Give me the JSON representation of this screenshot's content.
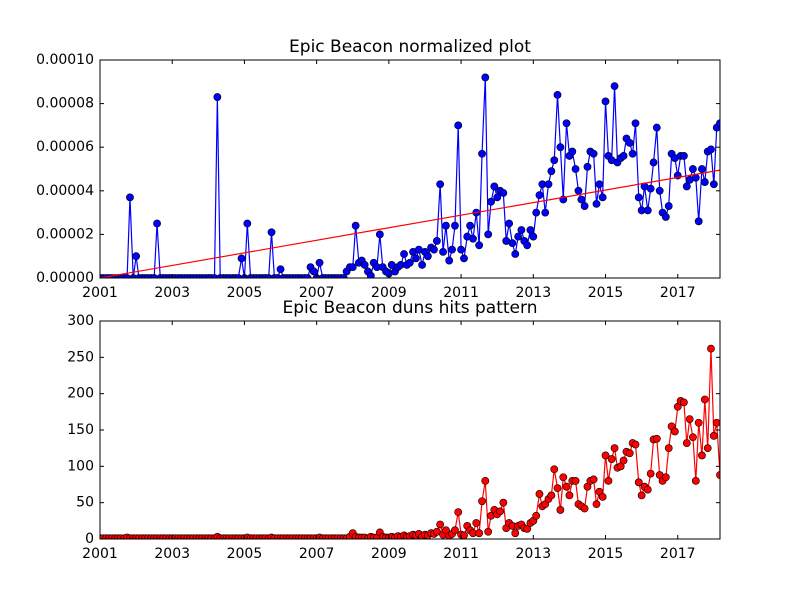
{
  "chart_data": [
    {
      "type": "line",
      "title": "Epic Beacon normalized plot",
      "xlim": [
        2001,
        2018.17
      ],
      "xticks": [
        2001,
        2003,
        2005,
        2007,
        2009,
        2011,
        2013,
        2015,
        2017
      ],
      "ylim": [
        0,
        0.0001
      ],
      "yticks": [
        {
          "value": 0,
          "label": "0.00000"
        },
        {
          "value": 2e-05,
          "label": "0.00002"
        },
        {
          "value": 4e-05,
          "label": "0.00004"
        },
        {
          "value": 6e-05,
          "label": "0.00006"
        },
        {
          "value": 8e-05,
          "label": "0.00008"
        },
        {
          "value": 0.0001,
          "label": "0.00010"
        }
      ],
      "x": [
        2001,
        2001.08,
        2001.17,
        2001.25,
        2001.33,
        2001.42,
        2001.5,
        2001.58,
        2001.67,
        2001.75,
        2001.83,
        2001.92,
        2002,
        2002.08,
        2002.17,
        2002.25,
        2002.33,
        2002.42,
        2002.5,
        2002.58,
        2002.67,
        2002.75,
        2002.83,
        2002.92,
        2003,
        2003.08,
        2003.17,
        2003.25,
        2003.33,
        2003.42,
        2003.5,
        2003.58,
        2003.67,
        2003.75,
        2003.83,
        2003.92,
        2004,
        2004.08,
        2004.17,
        2004.25,
        2004.33,
        2004.42,
        2004.5,
        2004.58,
        2004.67,
        2004.75,
        2004.83,
        2004.92,
        2005,
        2005.08,
        2005.17,
        2005.25,
        2005.33,
        2005.42,
        2005.5,
        2005.58,
        2005.67,
        2005.75,
        2005.83,
        2005.92,
        2006,
        2006.08,
        2006.17,
        2006.25,
        2006.33,
        2006.42,
        2006.5,
        2006.58,
        2006.67,
        2006.75,
        2006.83,
        2006.92,
        2007,
        2007.08,
        2007.17,
        2007.25,
        2007.33,
        2007.42,
        2007.5,
        2007.58,
        2007.67,
        2007.75,
        2007.83,
        2007.92,
        2008,
        2008.08,
        2008.17,
        2008.25,
        2008.33,
        2008.42,
        2008.5,
        2008.58,
        2008.67,
        2008.75,
        2008.83,
        2008.92,
        2009,
        2009.08,
        2009.17,
        2009.25,
        2009.33,
        2009.42,
        2009.5,
        2009.58,
        2009.67,
        2009.75,
        2009.83,
        2009.92,
        2010,
        2010.08,
        2010.17,
        2010.25,
        2010.33,
        2010.42,
        2010.5,
        2010.58,
        2010.67,
        2010.75,
        2010.83,
        2010.92,
        2011,
        2011.08,
        2011.17,
        2011.25,
        2011.33,
        2011.42,
        2011.5,
        2011.58,
        2011.67,
        2011.75,
        2011.83,
        2011.92,
        2012,
        2012.08,
        2012.17,
        2012.25,
        2012.33,
        2012.42,
        2012.5,
        2012.58,
        2012.67,
        2012.75,
        2012.83,
        2012.92,
        2013,
        2013.08,
        2013.17,
        2013.25,
        2013.33,
        2013.42,
        2013.5,
        2013.58,
        2013.67,
        2013.75,
        2013.83,
        2013.92,
        2014,
        2014.08,
        2014.17,
        2014.25,
        2014.33,
        2014.42,
        2014.5,
        2014.58,
        2014.67,
        2014.75,
        2014.83,
        2014.92,
        2015,
        2015.08,
        2015.17,
        2015.25,
        2015.33,
        2015.42,
        2015.5,
        2015.58,
        2015.67,
        2015.75,
        2015.83,
        2015.92,
        2016,
        2016.08,
        2016.17,
        2016.25,
        2016.33,
        2016.42,
        2016.5,
        2016.58,
        2016.67,
        2016.75,
        2016.83,
        2016.92,
        2017,
        2017.08,
        2017.17,
        2017.25,
        2017.33,
        2017.42,
        2017.5,
        2017.58,
        2017.67,
        2017.75,
        2017.83,
        2017.92,
        2018,
        2018.08,
        2018.17
      ],
      "series": [
        {
          "color": "#0000ff",
          "marker": true,
          "values": [
            0,
            0,
            0,
            0,
            0,
            0,
            0,
            0,
            0,
            0,
            3.7e-05,
            0,
            1e-05,
            0,
            0,
            0,
            0,
            0,
            0,
            2.5e-05,
            0,
            0,
            0,
            0,
            0,
            0,
            0,
            0,
            0,
            0,
            0,
            0,
            0,
            0,
            0,
            0,
            0,
            0,
            0,
            8.3e-05,
            0,
            0,
            0,
            0,
            0,
            0,
            0,
            9e-06,
            0,
            2.5e-05,
            0,
            0,
            0,
            0,
            0,
            0,
            0,
            2.1e-05,
            0,
            0,
            4e-06,
            0,
            0,
            0,
            0,
            0,
            0,
            0,
            0,
            0,
            5e-06,
            3e-06,
            0,
            7e-06,
            0,
            0,
            0,
            0,
            0,
            0,
            0,
            0,
            3e-06,
            5e-06,
            5e-06,
            2.4e-05,
            7e-06,
            8e-06,
            6e-06,
            3e-06,
            1e-06,
            7e-06,
            5e-06,
            2e-05,
            5e-06,
            3e-06,
            2e-06,
            6e-06,
            3e-06,
            5e-06,
            6e-06,
            1.1e-05,
            6e-06,
            7e-06,
            1.2e-05,
            9e-06,
            1.3e-05,
            6e-06,
            1.2e-05,
            1e-05,
            1.4e-05,
            1.3e-05,
            1.7e-05,
            4.3e-05,
            1.2e-05,
            2.4e-05,
            8e-06,
            1.3e-05,
            2.4e-05,
            7e-05,
            1.3e-05,
            9e-06,
            1.9e-05,
            2.4e-05,
            1.8e-05,
            3e-05,
            1.5e-05,
            5.7e-05,
            9.2e-05,
            2e-05,
            3.5e-05,
            4.2e-05,
            3.7e-05,
            4e-05,
            3.9e-05,
            1.7e-05,
            2.5e-05,
            1.6e-05,
            1.1e-05,
            1.9e-05,
            2.2e-05,
            1.7e-05,
            1.5e-05,
            2.2e-05,
            1.9e-05,
            3e-05,
            3.8e-05,
            4.3e-05,
            3e-05,
            4.3e-05,
            4.9e-05,
            5.4e-05,
            8.4e-05,
            6e-05,
            3.6e-05,
            7.1e-05,
            5.6e-05,
            5.8e-05,
            5e-05,
            4e-05,
            3.6e-05,
            3.3e-05,
            5.1e-05,
            5.8e-05,
            5.7e-05,
            3.4e-05,
            4.3e-05,
            3.7e-05,
            8.1e-05,
            5.6e-05,
            5.4e-05,
            8.8e-05,
            5.3e-05,
            5.5e-05,
            5.6e-05,
            6.4e-05,
            6.2e-05,
            5.7e-05,
            7.1e-05,
            3.7e-05,
            3.1e-05,
            4.2e-05,
            3.1e-05,
            4.1e-05,
            5.3e-05,
            6.9e-05,
            4e-05,
            3e-05,
            2.8e-05,
            3.3e-05,
            5.7e-05,
            5.5e-05,
            4.7e-05,
            5.6e-05,
            5.6e-05,
            4.2e-05,
            4.5e-05,
            5e-05,
            4.6e-05,
            2.6e-05,
            5e-05,
            4.4e-05,
            5.8e-05,
            5.9e-05,
            4.3e-05,
            6.9e-05,
            7.1e-05
          ]
        },
        {
          "color": "#ff0000",
          "marker": false,
          "x": [
            2001,
            2018.17
          ],
          "values": [
            0,
            4.95e-05
          ]
        }
      ]
    },
    {
      "type": "line",
      "title": "Epic Beacon duns hits pattern",
      "xlim": [
        2001,
        2018.17
      ],
      "xticks": [
        2001,
        2003,
        2005,
        2007,
        2009,
        2011,
        2013,
        2015,
        2017
      ],
      "ylim": [
        0,
        300
      ],
      "yticks": [
        0,
        50,
        100,
        150,
        200,
        250,
        300
      ],
      "x": [
        2001,
        2001.08,
        2001.17,
        2001.25,
        2001.33,
        2001.42,
        2001.5,
        2001.58,
        2001.67,
        2001.75,
        2001.83,
        2001.92,
        2002,
        2002.08,
        2002.17,
        2002.25,
        2002.33,
        2002.42,
        2002.5,
        2002.58,
        2002.67,
        2002.75,
        2002.83,
        2002.92,
        2003,
        2003.08,
        2003.17,
        2003.25,
        2003.33,
        2003.42,
        2003.5,
        2003.58,
        2003.67,
        2003.75,
        2003.83,
        2003.92,
        2004,
        2004.08,
        2004.17,
        2004.25,
        2004.33,
        2004.42,
        2004.5,
        2004.58,
        2004.67,
        2004.75,
        2004.83,
        2004.92,
        2005,
        2005.08,
        2005.17,
        2005.25,
        2005.33,
        2005.42,
        2005.5,
        2005.58,
        2005.67,
        2005.75,
        2005.83,
        2005.92,
        2006,
        2006.08,
        2006.17,
        2006.25,
        2006.33,
        2006.42,
        2006.5,
        2006.58,
        2006.67,
        2006.75,
        2006.83,
        2006.92,
        2007,
        2007.08,
        2007.17,
        2007.25,
        2007.33,
        2007.42,
        2007.5,
        2007.58,
        2007.67,
        2007.75,
        2007.83,
        2007.92,
        2008,
        2008.08,
        2008.17,
        2008.25,
        2008.33,
        2008.42,
        2008.5,
        2008.58,
        2008.67,
        2008.75,
        2008.83,
        2008.92,
        2009,
        2009.08,
        2009.17,
        2009.25,
        2009.33,
        2009.42,
        2009.5,
        2009.58,
        2009.67,
        2009.75,
        2009.83,
        2009.92,
        2010,
        2010.08,
        2010.17,
        2010.25,
        2010.33,
        2010.42,
        2010.5,
        2010.58,
        2010.67,
        2010.75,
        2010.83,
        2010.92,
        2011,
        2011.08,
        2011.17,
        2011.25,
        2011.33,
        2011.42,
        2011.5,
        2011.58,
        2011.67,
        2011.75,
        2011.83,
        2011.92,
        2012,
        2012.08,
        2012.17,
        2012.25,
        2012.33,
        2012.42,
        2012.5,
        2012.58,
        2012.67,
        2012.75,
        2012.83,
        2012.92,
        2013,
        2013.08,
        2013.17,
        2013.25,
        2013.33,
        2013.42,
        2013.5,
        2013.58,
        2013.67,
        2013.75,
        2013.83,
        2013.92,
        2014,
        2014.08,
        2014.17,
        2014.25,
        2014.33,
        2014.42,
        2014.5,
        2014.58,
        2014.67,
        2014.75,
        2014.83,
        2014.92,
        2015,
        2015.08,
        2015.17,
        2015.25,
        2015.33,
        2015.42,
        2015.5,
        2015.58,
        2015.67,
        2015.75,
        2015.83,
        2015.92,
        2016,
        2016.08,
        2016.17,
        2016.25,
        2016.33,
        2016.42,
        2016.5,
        2016.58,
        2016.67,
        2016.75,
        2016.83,
        2016.92,
        2017,
        2017.08,
        2017.17,
        2017.25,
        2017.33,
        2017.42,
        2017.5,
        2017.58,
        2017.67,
        2017.75,
        2017.83,
        2017.92,
        2018,
        2018.08,
        2018.17
      ],
      "series": [
        {
          "color": "#ff0000",
          "marker": true,
          "values": [
            1,
            1,
            1,
            1,
            1,
            1,
            1,
            1,
            1,
            2,
            1,
            1,
            1,
            1,
            1,
            1,
            1,
            1,
            1,
            1,
            1,
            1,
            1,
            1,
            1,
            1,
            1,
            1,
            1,
            1,
            1,
            1,
            1,
            1,
            1,
            1,
            1,
            1,
            1,
            3,
            1,
            1,
            1,
            1,
            1,
            1,
            1,
            1,
            1,
            2,
            1,
            1,
            1,
            1,
            1,
            1,
            1,
            2,
            1,
            1,
            1,
            1,
            1,
            1,
            1,
            1,
            1,
            1,
            1,
            1,
            1,
            1,
            1,
            2,
            1,
            1,
            1,
            1,
            1,
            1,
            1,
            1,
            1,
            3,
            8,
            3,
            2,
            2,
            2,
            1,
            3,
            2,
            2,
            9,
            3,
            2,
            2,
            3,
            2,
            4,
            3,
            5,
            3,
            4,
            6,
            5,
            7,
            3,
            6,
            5,
            8,
            7,
            10,
            20,
            6,
            12,
            4,
            7,
            12,
            37,
            6,
            5,
            18,
            12,
            8,
            22,
            8,
            52,
            80,
            10,
            32,
            40,
            34,
            38,
            50,
            15,
            22,
            18,
            8,
            18,
            20,
            15,
            14,
            22,
            25,
            32,
            62,
            45,
            48,
            55,
            60,
            96,
            70,
            40,
            85,
            72,
            60,
            80,
            80,
            48,
            45,
            42,
            72,
            80,
            82,
            48,
            65,
            58,
            115,
            80,
            110,
            125,
            98,
            100,
            108,
            120,
            118,
            132,
            130,
            78,
            60,
            72,
            68,
            90,
            137,
            138,
            88,
            80,
            85,
            125,
            155,
            148,
            182,
            190,
            188,
            132,
            165,
            140,
            80,
            160,
            115,
            192,
            125,
            262,
            142,
            160,
            88
          ]
        }
      ]
    }
  ]
}
